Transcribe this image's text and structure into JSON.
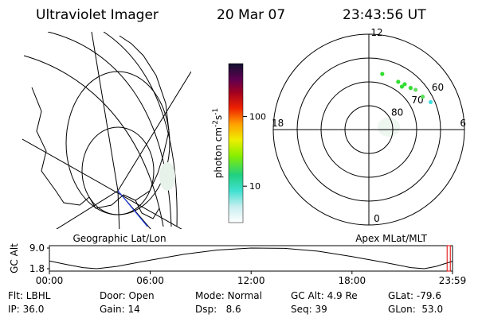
{
  "header": {
    "title": "Ultraviolet Imager",
    "date": "20 Mar 07",
    "time": "23:43:56 UT"
  },
  "left_panel": {
    "label": "Geographic Lat/Lon"
  },
  "right_panel": {
    "label": "Apex MLat/MLT"
  },
  "colorbar": {
    "label_base": "photon cm",
    "label_exp1": "-2",
    "label_unit2": "s",
    "label_exp2": "-1",
    "log_scale": true,
    "clim": [
      3,
      575
    ],
    "ticks": [
      100,
      10
    ]
  },
  "polar": {
    "type": "scatter",
    "mlat_min": 50,
    "mlat_rings": [
      60,
      70,
      80
    ],
    "mlt_ticks": [
      12,
      6,
      0,
      18
    ],
    "mlt": [
      11.1,
      9.9,
      9.5,
      9.45,
      9.0,
      8.7,
      8.1,
      7.6
    ],
    "mlat": [
      66,
      66.5,
      67.3,
      65.8,
      65.3,
      64.3,
      63.6,
      61.7
    ],
    "colors": [
      "#33dd33",
      "#33dd33",
      "#33dd33",
      "#33dd33",
      "#33dd33",
      "#66dd66",
      "#55dd55",
      "#44dddd"
    ]
  },
  "timeline": {
    "type": "line",
    "ylabel": "GC Alt",
    "ylim": [
      1.8,
      9.0
    ],
    "yticks": [
      {
        "value": 9.0,
        "label": "9.0"
      },
      {
        "value": 1.8,
        "label": "1.8"
      }
    ],
    "xlim": [
      0,
      23.98
    ],
    "xticks": [
      {
        "value": 0,
        "label": "00:00"
      },
      {
        "value": 6,
        "label": "06:00"
      },
      {
        "value": 12,
        "label": "12:00"
      },
      {
        "value": 18,
        "label": "18:00"
      },
      {
        "value": 23.98,
        "label": "23:59"
      }
    ],
    "x": [
      0,
      1,
      2,
      2.8,
      4,
      6,
      8,
      10,
      12,
      14,
      16,
      18,
      20,
      21.5,
      22.3,
      23,
      23.98
    ],
    "values": [
      4.5,
      3.3,
      2.2,
      1.8,
      2.6,
      4.8,
      6.8,
      8.3,
      9.0,
      8.9,
      7.9,
      6.0,
      3.9,
      2.2,
      1.8,
      2.6,
      4.4
    ],
    "marker_x": 23.73,
    "marker_color": "#e00000"
  },
  "info": [
    [
      "Flt: LBHL",
      "Door: Open",
      "Mode: Normal",
      "GC Alt: 4.9 Re",
      "GLat: -79.6"
    ],
    [
      "IP: 36.0",
      "Gain: 14",
      "Dsp:   8.6",
      "Seq: 39",
      "GLon:  53.0"
    ]
  ]
}
